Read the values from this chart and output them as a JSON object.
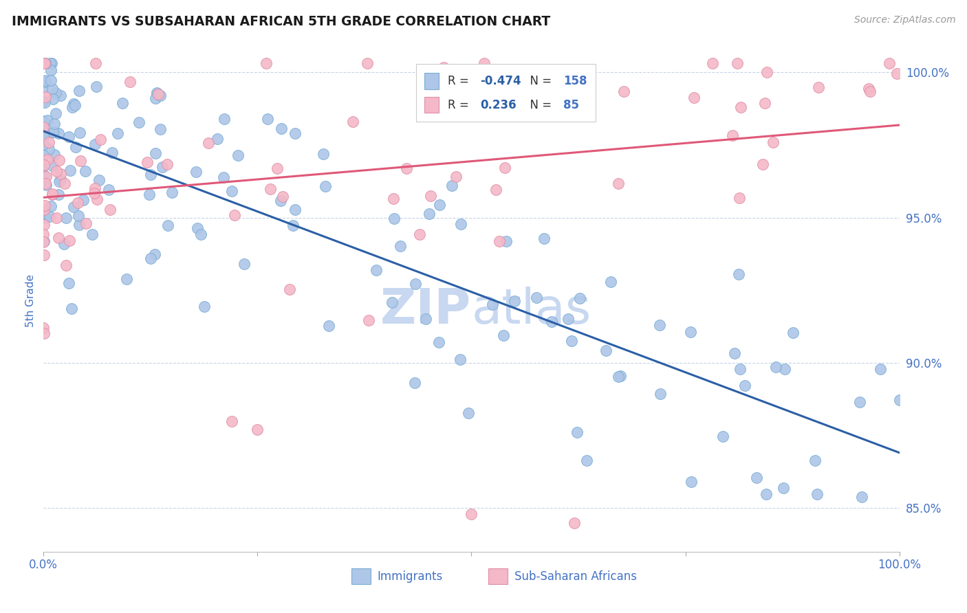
{
  "title": "IMMIGRANTS VS SUBSAHARAN AFRICAN 5TH GRADE CORRELATION CHART",
  "source_text": "Source: ZipAtlas.com",
  "ylabel": "5th Grade",
  "xlim": [
    0.0,
    1.0
  ],
  "ylim": [
    0.835,
    1.008
  ],
  "yticks": [
    0.85,
    0.9,
    0.95,
    1.0
  ],
  "ytick_labels": [
    "85.0%",
    "90.0%",
    "95.0%",
    "100.0%"
  ],
  "blue_scatter_color": "#aec6e8",
  "blue_scatter_edge": "#7aaed4",
  "pink_scatter_color": "#f4b8c8",
  "pink_scatter_edge": "#e090a8",
  "blue_line_color": "#2b5fa5",
  "pink_line_color": "#e05878",
  "text_color": "#4472c4",
  "background_color": "#ffffff",
  "grid_color": "#c8d4e8",
  "watermark_color": "#c8d8f0",
  "R_imm": "-0.474",
  "N_imm": 158,
  "R_ss": "0.236",
  "N_ss": 85
}
